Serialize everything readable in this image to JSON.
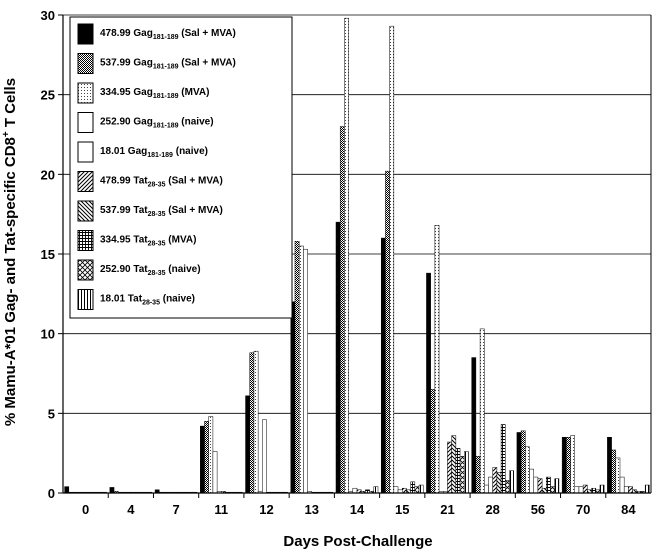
{
  "chart_data": {
    "type": "bar",
    "title": "",
    "xlabel": "Days Post-Challenge",
    "ylabel_parts": [
      "% Mamu-A*01 Gag- and Tat-specific CD8",
      "+",
      " T Cells"
    ],
    "ylim": [
      0,
      30
    ],
    "yticks": [
      0,
      5,
      10,
      15,
      20,
      25,
      30
    ],
    "grid": "horizontal",
    "legend_position": "upper-left",
    "categories": [
      "0",
      "4",
      "7",
      "11",
      "12",
      "13",
      "14",
      "15",
      "21",
      "28",
      "56",
      "70",
      "84"
    ],
    "series": [
      {
        "name": "478.99 Gag",
        "sub": "181-189",
        "suffix": " (Sal + MVA)",
        "pattern": "solid",
        "values": [
          0.4,
          0.35,
          0.2,
          4.2,
          6.1,
          12.0,
          17.0,
          16.0,
          13.8,
          8.5,
          3.8,
          3.5,
          3.5
        ]
      },
      {
        "name": "537.99 Gag",
        "sub": "181-189",
        "suffix": " (Sal + MVA)",
        "pattern": "dense",
        "values": [
          0.05,
          0.1,
          0.05,
          4.5,
          8.8,
          15.8,
          23.0,
          20.2,
          6.5,
          2.3,
          3.9,
          3.5,
          2.7
        ]
      },
      {
        "name": "334.95 Gag",
        "sub": "181-189",
        "suffix": " (MVA)",
        "pattern": "dots",
        "values": [
          0.05,
          0.05,
          0.05,
          4.8,
          8.9,
          15.5,
          29.8,
          29.3,
          16.8,
          10.3,
          2.9,
          3.6,
          2.2
        ]
      },
      {
        "name": "252.90 Gag",
        "sub": "181-189",
        "suffix": " (naive)",
        "pattern": "white",
        "values": [
          0.05,
          0.05,
          0.05,
          2.6,
          0.1,
          15.3,
          0.1,
          0.4,
          0.1,
          0.5,
          1.5,
          0.4,
          1.0
        ]
      },
      {
        "name": "18.01 Gag",
        "sub": "181-189",
        "suffix": " (naive)",
        "pattern": "white",
        "values": [
          0.05,
          0.05,
          0.05,
          0.1,
          4.6,
          0.1,
          0.3,
          0.2,
          0.1,
          1.0,
          1.0,
          0.4,
          0.4
        ]
      },
      {
        "name": "478.99 Tat",
        "sub": "28-35",
        "suffix": " (Sal + MVA)",
        "pattern": "diagR",
        "values": [
          0.05,
          0.05,
          0.05,
          0.1,
          0.05,
          0.05,
          0.2,
          0.3,
          3.2,
          1.6,
          0.9,
          0.5,
          0.4
        ]
      },
      {
        "name": "537.99 Tat",
        "sub": "28-35",
        "suffix": " (Sal + MVA)",
        "pattern": "diagL",
        "values": [
          0.05,
          0.05,
          0.05,
          0.05,
          0.05,
          0.05,
          0.1,
          0.2,
          3.6,
          1.3,
          0.3,
          0.2,
          0.2
        ]
      },
      {
        "name": "334.95 Tat",
        "sub": "28-35",
        "suffix": " (MVA)",
        "pattern": "cross",
        "values": [
          0.05,
          0.05,
          0.05,
          0.05,
          0.05,
          0.05,
          0.2,
          0.7,
          2.8,
          4.3,
          1.0,
          0.3,
          0.1
        ]
      },
      {
        "name": "252.90 Tat",
        "sub": "28-35",
        "suffix": " (naive)",
        "pattern": "xcross",
        "values": [
          0.05,
          0.05,
          0.05,
          0.05,
          0.05,
          0.05,
          0.1,
          0.4,
          2.3,
          0.8,
          0.4,
          0.2,
          0.1
        ]
      },
      {
        "name": "18.01 Tat",
        "sub": "28-35",
        "suffix": " (naive)",
        "pattern": "vert",
        "values": [
          0.05,
          0.05,
          0.05,
          0.05,
          0.05,
          0.05,
          0.4,
          0.5,
          2.6,
          1.4,
          0.9,
          0.5,
          0.5
        ]
      }
    ]
  }
}
